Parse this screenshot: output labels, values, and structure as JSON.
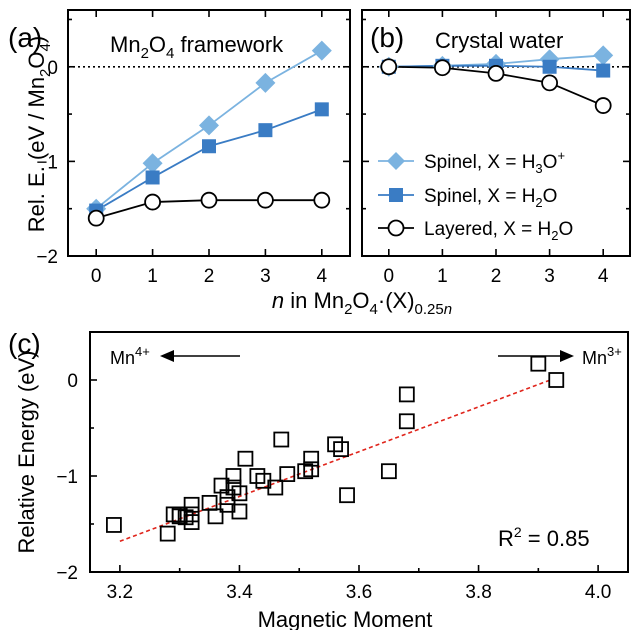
{
  "chart_data": [
    {
      "id": "a",
      "type": "line",
      "panel_label": "(a)",
      "title": "Mn2O4 framework",
      "title_parts": {
        "pre": "Mn",
        "s1": "2",
        "mid": "O",
        "s2": "4",
        "post": " framework"
      },
      "ylabel": "Rel. E. (eV / Mn2O4)",
      "ylabel_parts": {
        "pre": "Rel. E. (eV / Mn",
        "s1": "2",
        "mid": "O",
        "s2": "4",
        "post": ")"
      },
      "xlim": [
        -0.5,
        4.5
      ],
      "ylim": [
        -2.0,
        0.6
      ],
      "x": [
        0,
        1,
        2,
        3,
        4
      ],
      "x_ticks": [
        "0",
        "1",
        "2",
        "3",
        "4"
      ],
      "y_ticks": [
        "-2",
        "-1",
        "0"
      ],
      "zero_line": "dotted",
      "series": [
        {
          "name": "Spinel, X = H3O+",
          "marker": "diamond",
          "color": "#7bb3e0",
          "values": [
            -1.5,
            -1.02,
            -0.62,
            -0.17,
            0.17
          ]
        },
        {
          "name": "Spinel, X = H2O",
          "marker": "square",
          "color": "#3a7cc4",
          "values": [
            -1.52,
            -1.17,
            -0.84,
            -0.67,
            -0.45
          ]
        },
        {
          "name": "Layered, X = H2O",
          "marker": "open-circle",
          "color": "#000000",
          "values": [
            -1.6,
            -1.43,
            -1.41,
            -1.41,
            -1.41
          ]
        }
      ]
    },
    {
      "id": "b",
      "type": "line",
      "panel_label": "(b)",
      "title": "Crystal water",
      "xlim": [
        -0.5,
        4.5
      ],
      "ylim": [
        -2.0,
        0.6
      ],
      "x": [
        0,
        1,
        2,
        3,
        4
      ],
      "x_ticks": [
        "0",
        "1",
        "2",
        "3",
        "4"
      ],
      "zero_line": "dotted",
      "legend": "center-right",
      "legend_entries": [
        {
          "pre": "Spinel, X = H",
          "s1": "3",
          "mid": "O",
          "sup": "+",
          "post": ""
        },
        {
          "pre": "Spinel, X = H",
          "s1": "2",
          "mid": "O",
          "sup": "",
          "post": ""
        },
        {
          "pre": "Layered, X = H",
          "s1": "2",
          "mid": "O",
          "sup": "",
          "post": ""
        }
      ],
      "series": [
        {
          "name": "Spinel, X = H3O+",
          "marker": "diamond",
          "color": "#7bb3e0",
          "values": [
            0.0,
            0.01,
            0.03,
            0.08,
            0.12
          ]
        },
        {
          "name": "Spinel, X = H2O",
          "marker": "square",
          "color": "#3a7cc4",
          "values": [
            0.0,
            0.01,
            0.01,
            0.0,
            -0.04
          ]
        },
        {
          "name": "Layered, X = H2O",
          "marker": "open-circle",
          "color": "#000000",
          "values": [
            0.0,
            -0.01,
            -0.07,
            -0.17,
            -0.41
          ]
        }
      ],
      "shared_xlabel": "n in Mn2O4·(X)0.25n",
      "shared_xlabel_parts": {
        "n": "n",
        "pre": " in Mn",
        "s1": "2",
        "mid": "O",
        "s2": "4",
        "mid2": "·(X)",
        "s3": "0.25",
        "s3n": "n"
      }
    },
    {
      "id": "c",
      "type": "scatter",
      "panel_label": "(c)",
      "xlabel": "Magnetic Moment",
      "ylabel": "Relative Energy (eV)",
      "xlim": [
        3.15,
        4.05
      ],
      "ylim": [
        -2.0,
        0.5
      ],
      "x_ticks": [
        "3.2",
        "3.4",
        "3.6",
        "3.8",
        "4.0"
      ],
      "y_ticks": [
        "-2",
        "-1",
        "0"
      ],
      "marker": "open-square",
      "points": [
        [
          3.19,
          -1.51
        ],
        [
          3.28,
          -1.6
        ],
        [
          3.29,
          -1.4
        ],
        [
          3.3,
          -1.42
        ],
        [
          3.3,
          -1.4
        ],
        [
          3.31,
          -1.43
        ],
        [
          3.32,
          -1.4
        ],
        [
          3.32,
          -1.48
        ],
        [
          3.32,
          -1.3
        ],
        [
          3.35,
          -1.28
        ],
        [
          3.36,
          -1.42
        ],
        [
          3.37,
          -1.1
        ],
        [
          3.38,
          -1.22
        ],
        [
          3.38,
          -1.3
        ],
        [
          3.39,
          -1.0
        ],
        [
          3.39,
          -1.12
        ],
        [
          3.4,
          -1.37
        ],
        [
          3.4,
          -1.18
        ],
        [
          3.41,
          -0.82
        ],
        [
          3.43,
          -1.0
        ],
        [
          3.44,
          -1.05
        ],
        [
          3.46,
          -1.12
        ],
        [
          3.47,
          -0.62
        ],
        [
          3.48,
          -0.98
        ],
        [
          3.51,
          -0.95
        ],
        [
          3.52,
          -0.93
        ],
        [
          3.52,
          -0.82
        ],
        [
          3.56,
          -0.67
        ],
        [
          3.57,
          -0.72
        ],
        [
          3.58,
          -1.2
        ],
        [
          3.65,
          -0.95
        ],
        [
          3.68,
          -0.15
        ],
        [
          3.68,
          -0.43
        ],
        [
          3.9,
          0.17
        ],
        [
          3.93,
          0.0
        ]
      ],
      "fit_line": {
        "x": [
          3.2,
          3.92
        ],
        "y": [
          -1.68,
          0.0
        ],
        "style": "dashed",
        "color": "#e0241b"
      },
      "r2_label": {
        "pre": "R",
        "sup": "2",
        "post": " = 0.85"
      },
      "arrow_left": {
        "pre": "Mn",
        "sup": "4+"
      },
      "arrow_right": {
        "pre": "Mn",
        "sup": "3+"
      }
    }
  ]
}
